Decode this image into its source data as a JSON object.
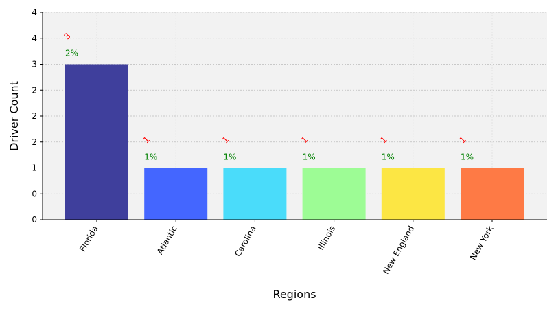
{
  "chart_data": {
    "type": "bar",
    "x_label": "Regions",
    "y_label": "Driver Count",
    "categories": [
      "Florida",
      "Atlantic",
      "Carolina",
      "Illinois",
      "New England",
      "New York"
    ],
    "values": [
      3,
      1,
      1,
      1,
      1,
      1
    ],
    "value_labels": [
      "3",
      "1",
      "1",
      "1",
      "1",
      "1"
    ],
    "annotations": [
      "2%",
      "1%",
      "1%",
      "1%",
      "1%",
      "1%"
    ],
    "colors": [
      "#3f3f9c",
      "#4466ff",
      "#4adcfa",
      "#9dfc95",
      "#fce644",
      "#fe7a45"
    ],
    "ylim": [
      0,
      4
    ],
    "yticks": [
      0,
      {
        "value": 0.5,
        "label": "0"
      },
      1,
      {
        "value": 1.5,
        "label": "2"
      },
      2,
      {
        "value": 2.5,
        "label": "2"
      },
      3,
      {
        "value": 3.5,
        "label": "4"
      },
      4
    ],
    "grid": true
  }
}
